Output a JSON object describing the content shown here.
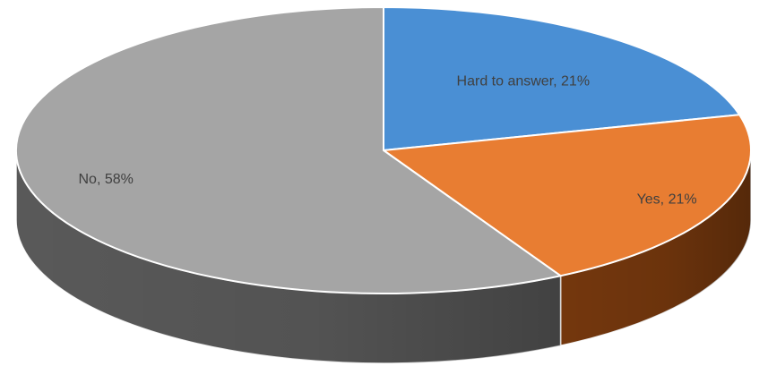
{
  "chart_data": {
    "type": "pie",
    "style": "3d",
    "title": "",
    "categories": [
      "Hard to answer",
      "Yes",
      "No"
    ],
    "values": [
      21,
      21,
      58
    ],
    "unit": "%",
    "labels": [
      "Hard to answer, 21%",
      "Yes, 21%",
      "No, 58%"
    ],
    "colors": [
      "#4a8fd4",
      "#e87d32",
      "#a5a5a5"
    ],
    "side_colors": [
      "#2e5f8f",
      "#7a3a0e",
      "#5e5e5e"
    ],
    "start_angle": "12 o'clock",
    "direction": "clockwise",
    "legend": "none"
  }
}
